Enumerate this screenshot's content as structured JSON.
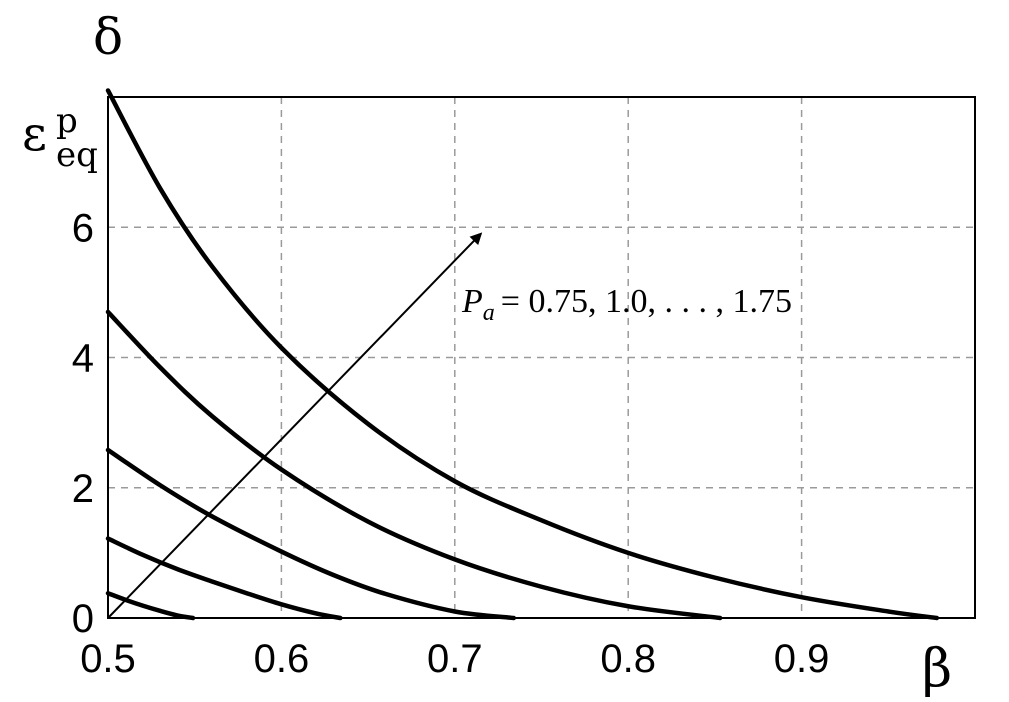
{
  "chart_data": {
    "type": "line",
    "xlabel": "β",
    "ylabel_top": "δ",
    "ylabel_main": "ε",
    "ylabel_sup": "p",
    "ylabel_sub": "eq",
    "xlim": [
      0.5,
      1.0
    ],
    "ylim": [
      0,
      8
    ],
    "grid": true,
    "grid_style": "dashed",
    "x_ticks": [
      0.5,
      0.6,
      0.7,
      0.8,
      0.9
    ],
    "x_tick_labels": [
      "0.5",
      "0.6",
      "0.7",
      "0.8",
      "0.9"
    ],
    "y_ticks": [
      0,
      2,
      4,
      6
    ],
    "y_tick_labels": [
      "0",
      "2",
      "4",
      "6"
    ],
    "annotation": {
      "var": "P",
      "var_sub": "a",
      "text": "= 0.75, 1.0, . . . , 1.75",
      "arrow_from": [
        0.5,
        0.0
      ],
      "arrow_to": [
        0.715,
        5.9
      ]
    },
    "series": [
      {
        "x": [
          0.5,
          0.51,
          0.52,
          0.53,
          0.54,
          0.549
        ],
        "y": [
          0.38,
          0.28,
          0.19,
          0.11,
          0.04,
          0.0
        ]
      },
      {
        "x": [
          0.5,
          0.52,
          0.54,
          0.56,
          0.58,
          0.6,
          0.62,
          0.634
        ],
        "y": [
          1.22,
          0.97,
          0.75,
          0.56,
          0.38,
          0.21,
          0.07,
          0.0
        ]
      },
      {
        "x": [
          0.5,
          0.53,
          0.56,
          0.6,
          0.63,
          0.66,
          0.7,
          0.734
        ],
        "y": [
          2.58,
          2.04,
          1.56,
          1.02,
          0.66,
          0.37,
          0.1,
          0.0
        ]
      },
      {
        "x": [
          0.5,
          0.53,
          0.56,
          0.6,
          0.65,
          0.7,
          0.75,
          0.8,
          0.853
        ],
        "y": [
          4.7,
          3.85,
          3.1,
          2.28,
          1.48,
          0.9,
          0.48,
          0.18,
          0.0
        ]
      },
      {
        "x": [
          0.5,
          0.53,
          0.56,
          0.6,
          0.65,
          0.7,
          0.75,
          0.8,
          0.85,
          0.9,
          0.95,
          0.978
        ],
        "y": [
          8.1,
          6.6,
          5.4,
          4.15,
          2.98,
          2.1,
          1.5,
          1.0,
          0.62,
          0.32,
          0.1,
          0.0
        ]
      }
    ]
  }
}
